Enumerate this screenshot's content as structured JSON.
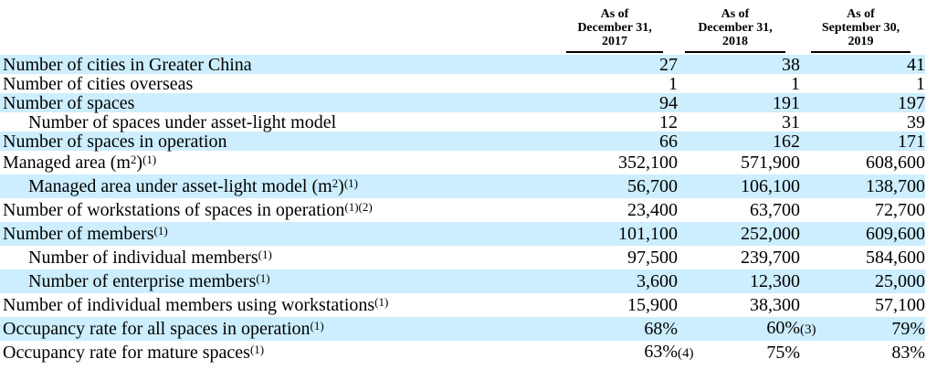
{
  "table": {
    "columns": [
      {
        "lines": [
          "As of",
          "December 31,",
          "2017"
        ]
      },
      {
        "lines": [
          "As of",
          "December 31,",
          "2018"
        ]
      },
      {
        "lines": [
          "As of",
          "September 30,",
          "2019"
        ]
      }
    ],
    "rows": [
      {
        "label": [
          [
            "t",
            "Number of cities in Greater China"
          ]
        ],
        "indent": false,
        "shaded": true,
        "values": [
          {
            "v": "27"
          },
          {
            "v": "38"
          },
          {
            "v": "41"
          }
        ]
      },
      {
        "label": [
          [
            "t",
            "Number of cities overseas"
          ]
        ],
        "indent": false,
        "shaded": false,
        "values": [
          {
            "v": "1"
          },
          {
            "v": "1"
          },
          {
            "v": "1"
          }
        ]
      },
      {
        "label": [
          [
            "t",
            "Number of spaces"
          ]
        ],
        "indent": false,
        "shaded": true,
        "values": [
          {
            "v": "94"
          },
          {
            "v": "191"
          },
          {
            "v": "197"
          }
        ]
      },
      {
        "label": [
          [
            "t",
            "Number of spaces under asset-light model"
          ]
        ],
        "indent": true,
        "shaded": false,
        "values": [
          {
            "v": "12"
          },
          {
            "v": "31"
          },
          {
            "v": "39"
          }
        ]
      },
      {
        "label": [
          [
            "t",
            "Number of spaces in operation"
          ]
        ],
        "indent": false,
        "shaded": true,
        "values": [
          {
            "v": "66"
          },
          {
            "v": "162"
          },
          {
            "v": "171"
          }
        ]
      },
      {
        "label": [
          [
            "t",
            "Managed area (m"
          ],
          [
            "s",
            "2"
          ],
          [
            "t",
            ")"
          ],
          [
            "s",
            "(1)"
          ]
        ],
        "indent": false,
        "shaded": false,
        "values": [
          {
            "v": "352,100"
          },
          {
            "v": "571,900"
          },
          {
            "v": "608,600"
          }
        ]
      },
      {
        "label": [
          [
            "t",
            "Managed area under asset-light model (m"
          ],
          [
            "s",
            "2"
          ],
          [
            "t",
            ")"
          ],
          [
            "s",
            "(1)"
          ]
        ],
        "indent": true,
        "shaded": true,
        "values": [
          {
            "v": "56,700"
          },
          {
            "v": "106,100"
          },
          {
            "v": "138,700"
          }
        ]
      },
      {
        "label": [
          [
            "t",
            "Number of workstations of spaces in operation"
          ],
          [
            "s",
            "(1)(2)"
          ]
        ],
        "indent": false,
        "shaded": false,
        "values": [
          {
            "v": "23,400"
          },
          {
            "v": "63,700"
          },
          {
            "v": "72,700"
          }
        ]
      },
      {
        "label": [
          [
            "t",
            "Number of members"
          ],
          [
            "s",
            "(1)"
          ]
        ],
        "indent": false,
        "shaded": true,
        "values": [
          {
            "v": "101,100"
          },
          {
            "v": "252,000"
          },
          {
            "v": "609,600"
          }
        ]
      },
      {
        "label": [
          [
            "t",
            "Number of individual members"
          ],
          [
            "s",
            "(1)"
          ]
        ],
        "indent": true,
        "shaded": false,
        "values": [
          {
            "v": "97,500"
          },
          {
            "v": "239,700"
          },
          {
            "v": "584,600"
          }
        ]
      },
      {
        "label": [
          [
            "t",
            "Number of enterprise members"
          ],
          [
            "s",
            "(1)"
          ]
        ],
        "indent": true,
        "shaded": true,
        "values": [
          {
            "v": "3,600"
          },
          {
            "v": "12,300"
          },
          {
            "v": "25,000"
          }
        ]
      },
      {
        "label": [
          [
            "t",
            "Number of individual members using workstations"
          ],
          [
            "s",
            "(1)"
          ]
        ],
        "indent": false,
        "shaded": false,
        "values": [
          {
            "v": "15,900"
          },
          {
            "v": "38,300"
          },
          {
            "v": "57,100"
          }
        ]
      },
      {
        "label": [
          [
            "t",
            "Occupancy rate for all spaces in operation"
          ],
          [
            "s",
            "(1)"
          ]
        ],
        "indent": false,
        "shaded": true,
        "values": [
          {
            "v": "68%"
          },
          {
            "v": "60%",
            "fn": "(3)"
          },
          {
            "v": "79%"
          }
        ]
      },
      {
        "label": [
          [
            "t",
            "Occupancy rate for mature spaces"
          ],
          [
            "s",
            "(1)"
          ]
        ],
        "indent": false,
        "shaded": false,
        "values": [
          {
            "v": "63%",
            "fn": "(4)"
          },
          {
            "v": "75%"
          },
          {
            "v": "83%"
          }
        ]
      }
    ]
  },
  "colors": {
    "row_highlight": "#cceeff",
    "text": "#000000",
    "rule": "#000000"
  }
}
